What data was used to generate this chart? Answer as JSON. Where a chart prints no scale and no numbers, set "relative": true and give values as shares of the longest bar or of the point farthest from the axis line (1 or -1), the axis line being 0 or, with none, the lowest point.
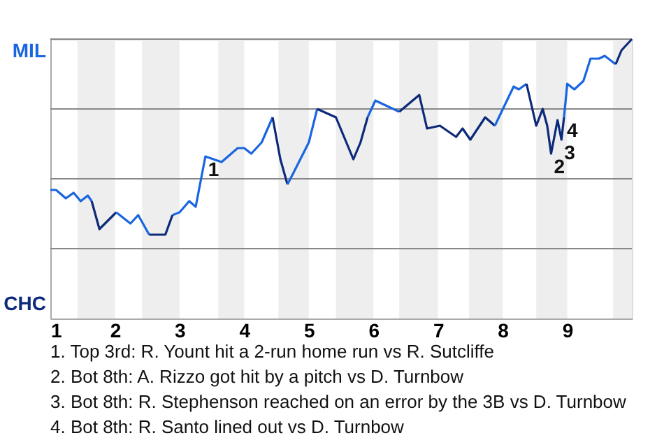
{
  "chart_data": {
    "type": "line",
    "relative": true,
    "xlim": [
      1,
      10
    ],
    "xticks": [
      1,
      2,
      3,
      4,
      5,
      6,
      7,
      8,
      9
    ],
    "line_style": "solid",
    "marker": "none",
    "ref_lines": [
      {
        "axis": "y",
        "value": 1,
        "color": "#888888"
      },
      {
        "axis": "y",
        "value": 0.75,
        "color": "#888888"
      },
      {
        "axis": "y",
        "value": 0.5,
        "color": "#888888"
      },
      {
        "axis": "y",
        "value": 0.25,
        "color": "#888888"
      }
    ],
    "bands": [
      {
        "axis": "x",
        "from": 1.42,
        "to": 2,
        "color": "#eeeeee"
      },
      {
        "axis": "x",
        "from": 2.42,
        "to": 3,
        "color": "#eeeeee"
      },
      {
        "axis": "x",
        "from": 3.6,
        "to": 4,
        "color": "#eeeeee"
      },
      {
        "axis": "x",
        "from": 4.53,
        "to": 5,
        "color": "#eeeeee"
      },
      {
        "axis": "x",
        "from": 5.42,
        "to": 6,
        "color": "#eeeeee"
      },
      {
        "axis": "x",
        "from": 6.4,
        "to": 7,
        "color": "#eeeeee"
      },
      {
        "axis": "x",
        "from": 7.48,
        "to": 8,
        "color": "#eeeeee"
      },
      {
        "axis": "x",
        "from": 8.52,
        "to": 9,
        "color": "#eeeeee"
      },
      {
        "axis": "x",
        "from": 9.71,
        "to": 10,
        "color": "#eeeeee"
      }
    ],
    "series": [
      {
        "color": "#1a66e0",
        "x": [
          1,
          1.09,
          1.24,
          1.36,
          1.47,
          1.58,
          1.64
        ],
        "values": [
          0.46,
          0.46,
          0.43,
          0.45,
          0.42,
          0.44,
          0.42
        ]
      },
      {
        "color": "#0d2a7a",
        "x": [
          1.64,
          1.76,
          2.02
        ],
        "values": [
          0.42,
          0.32,
          0.38
        ]
      },
      {
        "color": "#1a66e0",
        "x": [
          2.02,
          2.24,
          2.36,
          2.53
        ],
        "values": [
          0.38,
          0.34,
          0.37,
          0.3
        ]
      },
      {
        "color": "#0d2a7a",
        "x": [
          2.53,
          2.78,
          2.89
        ],
        "values": [
          0.3,
          0.3,
          0.37
        ]
      },
      {
        "color": "#1a66e0",
        "x": [
          2.89,
          3,
          3.15,
          3.25,
          3.4,
          3.65,
          3.9,
          4,
          4.11,
          4.27,
          4.44
        ],
        "values": [
          0.37,
          0.38,
          0.42,
          0.4,
          0.58,
          0.56,
          0.61,
          0.61,
          0.59,
          0.63,
          0.72
        ]
      },
      {
        "color": "#0d2a7a",
        "x": [
          4.44,
          4.56,
          4.67
        ],
        "values": [
          0.72,
          0.57,
          0.48
        ]
      },
      {
        "color": "#1a66e0",
        "x": [
          4.67,
          4.76,
          5,
          5.13
        ],
        "values": [
          0.48,
          0.52,
          0.63,
          0.75
        ]
      },
      {
        "color": "#0d2a7a",
        "x": [
          5.13,
          5.42,
          5.69,
          5.8,
          5.91
        ],
        "values": [
          0.75,
          0.72,
          0.57,
          0.63,
          0.72
        ]
      },
      {
        "color": "#1a66e0",
        "x": [
          5.91,
          6.03,
          6.4
        ],
        "values": [
          0.72,
          0.78,
          0.74
        ]
      },
      {
        "color": "#0d2a7a",
        "x": [
          6.4,
          6.71,
          6.83,
          7.03,
          7.28,
          7.38,
          7.5,
          7.73,
          7.88
        ],
        "values": [
          0.74,
          0.8,
          0.68,
          0.69,
          0.65,
          0.68,
          0.64,
          0.72,
          0.69
        ]
      },
      {
        "color": "#1a66e0",
        "x": [
          7.88,
          8.17,
          8.25,
          8.37
        ],
        "values": [
          0.69,
          0.83,
          0.82,
          0.84
        ]
      },
      {
        "color": "#0d2a7a",
        "x": [
          8.37,
          8.52,
          8.62,
          8.69,
          8.75,
          8.85,
          8.91,
          8.95
        ],
        "values": [
          0.84,
          0.69,
          0.75,
          0.69,
          0.59,
          0.71,
          0.64,
          0.72
        ]
      },
      {
        "color": "#1a66e0",
        "x": [
          8.95,
          9,
          9.11,
          9.25,
          9.36,
          9.49,
          9.58,
          9.75
        ],
        "values": [
          0.72,
          0.84,
          0.82,
          0.85,
          0.93,
          0.93,
          0.94,
          0.91
        ]
      },
      {
        "color": "#0d2a7a",
        "x": [
          9.75,
          9.84,
          10
        ],
        "values": [
          0.91,
          0.96,
          1.0
        ]
      }
    ],
    "annotations": [
      "MIL",
      "CHC",
      {
        "text": "1",
        "x": 3.4,
        "y": 0.58
      },
      {
        "text": "2",
        "x": 8.75,
        "y": 0.59
      },
      {
        "text": "3",
        "x": 8.91,
        "y": 0.64
      },
      {
        "text": "4",
        "x": 8.95,
        "y": 0.72
      },
      "1. Top 3rd: R. Yount hit a 2-run home run vs R. Sutcliffe",
      "2. Bot 8th: A. Rizzo got hit by a pitch vs D. Turnbow",
      "3. Bot 8th: R. Stephenson reached on an error by the 3B vs D. Turnbow",
      "4. Bot 8th: R. Santo lined out vs D. Turnbow"
    ]
  }
}
